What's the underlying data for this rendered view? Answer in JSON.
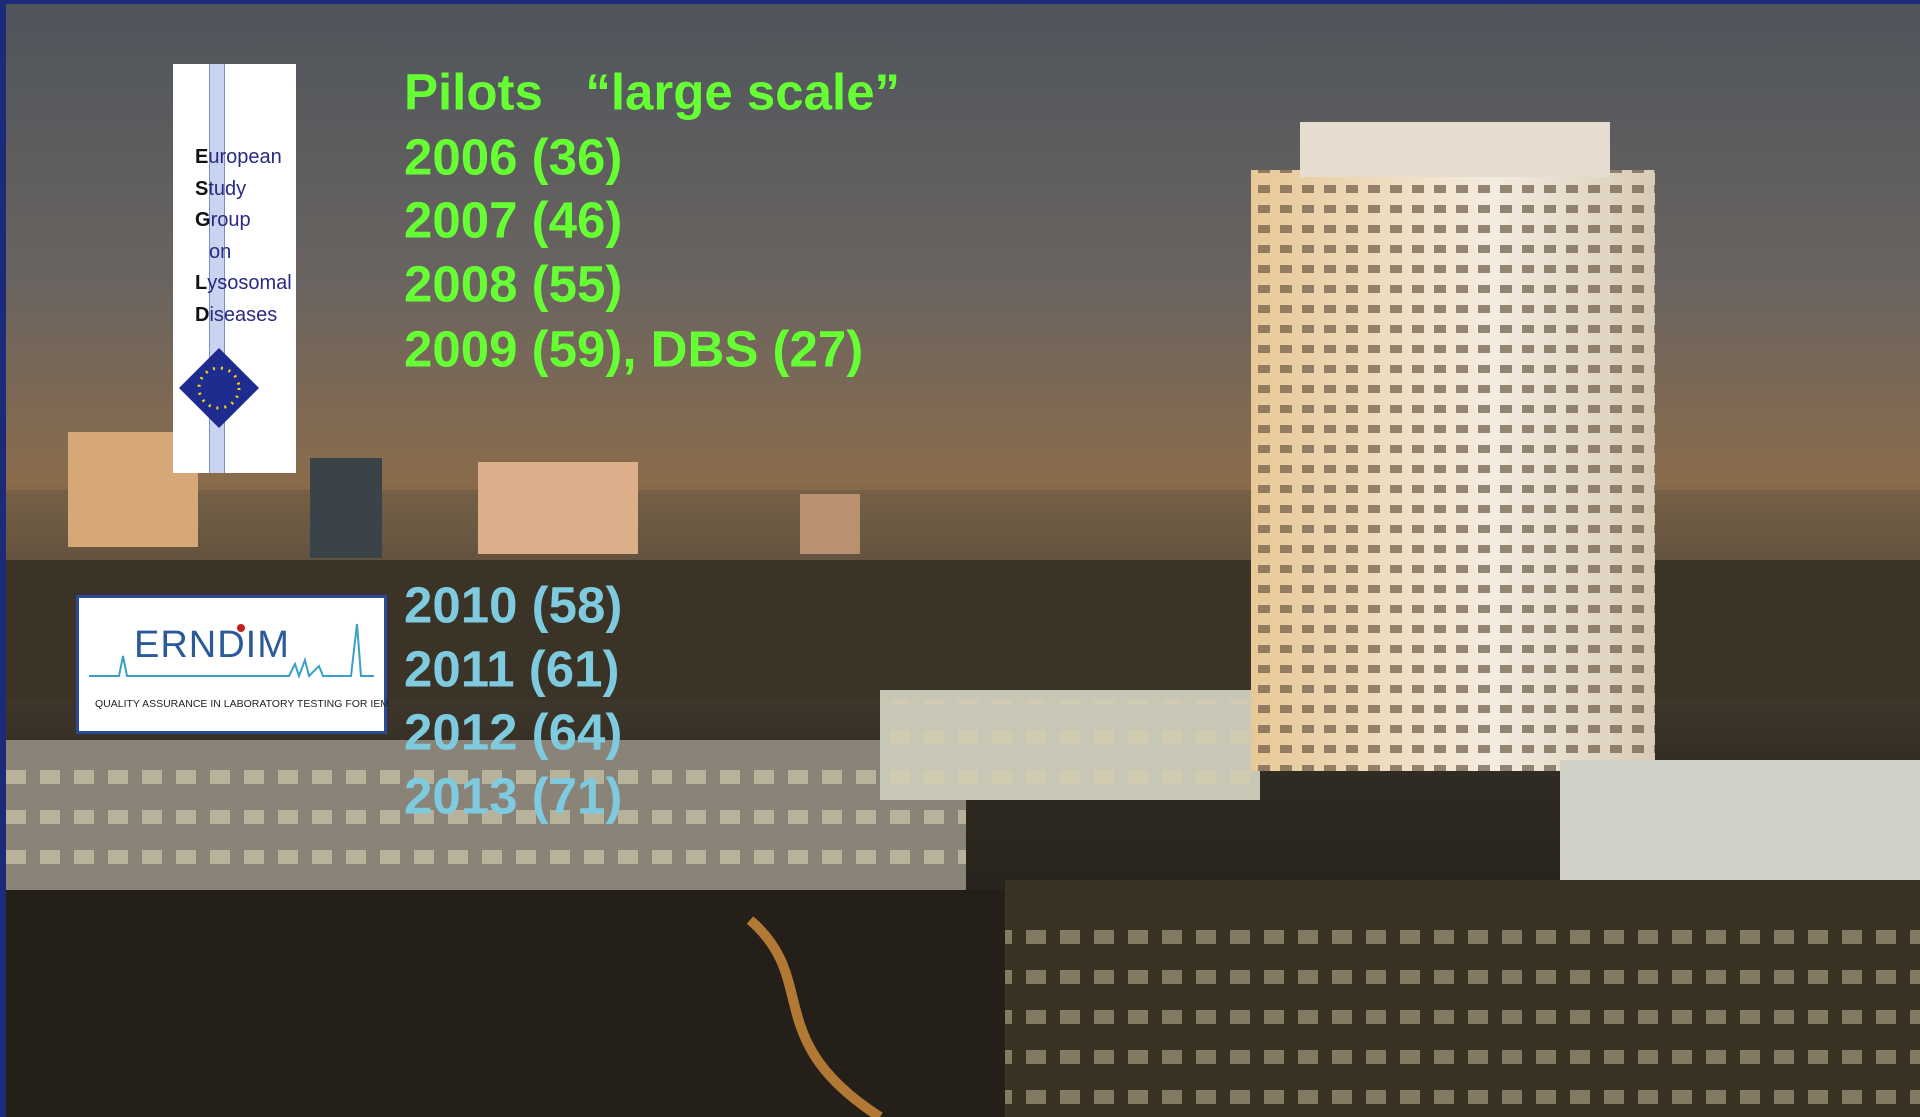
{
  "esgld_logo": {
    "words": [
      "European",
      "Study",
      "Group",
      "on",
      "Lysosomal",
      "Diseases"
    ]
  },
  "erndim_logo": {
    "name": "ERNDIM",
    "tagline": "QUALITY ASSURANCE IN LABORATORY TESTING FOR IEM"
  },
  "esgld_lines": [
    "Pilots   “large scale”",
    "2006 (36)",
    "2007 (46)",
    "2008 (55)",
    "2009 (59), DBS (27)"
  ],
  "erndim_lines": [
    "2010 (58)",
    "2011 (61)",
    "2012 (64)",
    "2013 (71)"
  ]
}
